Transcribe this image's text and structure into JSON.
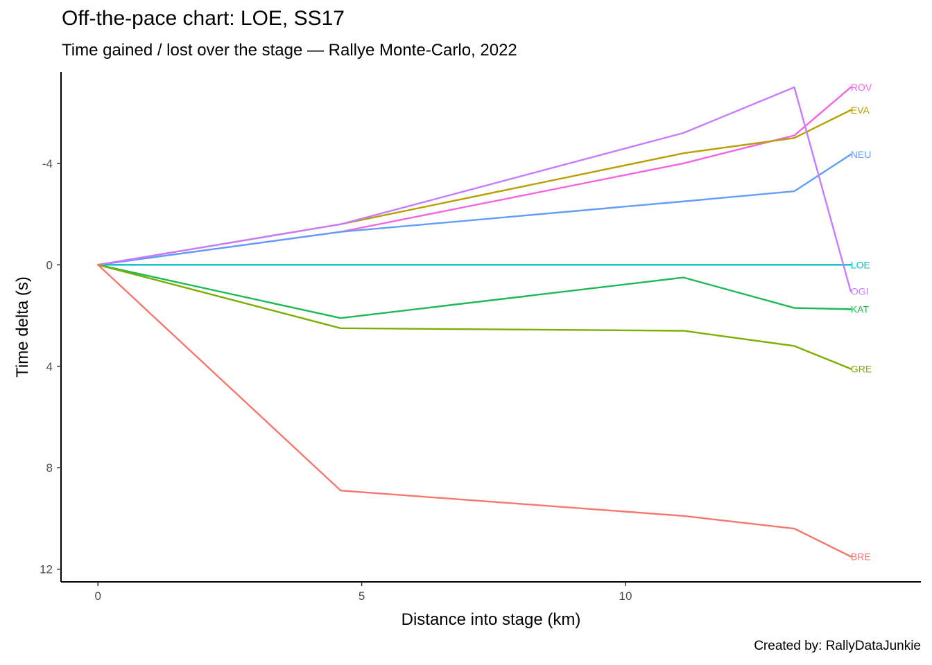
{
  "chart_data": {
    "type": "line",
    "title": "Off-the-pace chart: LOE, SS17",
    "subtitle": "Time gained / lost over the stage — Rallye Monte-Carlo, 2022",
    "caption": "Created by: RallyDataJunkie",
    "xlabel": "Distance into stage (km)",
    "ylabel": "Time delta (s)",
    "xlim": [
      -0.7,
      15.6
    ],
    "ylim": [
      -7.6,
      12.5
    ],
    "y_reversed": true,
    "xticks": [
      0,
      5,
      10
    ],
    "xtick_labels": [
      "0",
      "5",
      "10"
    ],
    "yticks": [
      -4,
      0,
      4,
      8,
      12
    ],
    "ytick_labels": [
      "-4",
      "0",
      "4",
      "8",
      "12"
    ],
    "grid": false,
    "legend": "none (direct end labels)",
    "x": [
      0,
      4.6,
      11.1,
      13.2,
      14.27
    ],
    "series": [
      {
        "name": "ROV",
        "color": "#F564E3",
        "values": [
          0,
          -1.3,
          -4.0,
          -5.1,
          -7.0
        ]
      },
      {
        "name": "EVA",
        "color": "#B79F00",
        "values": [
          0,
          -1.6,
          -4.4,
          -5.0,
          -6.1
        ]
      },
      {
        "name": "NEU",
        "color": "#619CFF",
        "values": [
          0,
          -1.3,
          -2.5,
          -2.9,
          -4.35
        ]
      },
      {
        "name": "LOE",
        "color": "#00BFC4",
        "values": [
          0,
          0,
          0,
          0,
          0
        ]
      },
      {
        "name": "OGI",
        "color": "#C77CFF",
        "values": [
          0,
          -1.6,
          -5.2,
          -7.0,
          1.05
        ]
      },
      {
        "name": "KAT",
        "color": "#1DB954",
        "values": [
          0,
          2.1,
          0.5,
          1.7,
          1.75
        ]
      },
      {
        "name": "GRE",
        "color": "#7CAE00",
        "values": [
          0,
          2.5,
          2.6,
          3.2,
          4.1
        ]
      },
      {
        "name": "BRE",
        "color": "#F8766D",
        "values": [
          0,
          8.9,
          9.9,
          10.4,
          11.5
        ]
      }
    ]
  }
}
